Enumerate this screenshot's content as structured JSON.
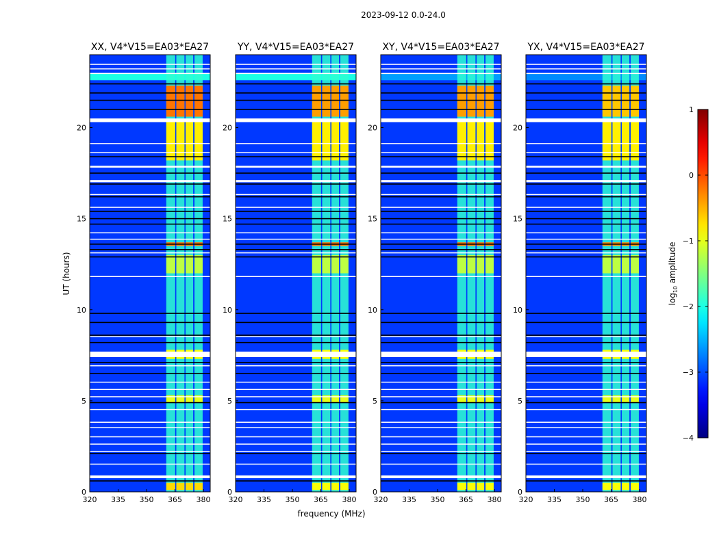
{
  "chart_data": {
    "type": "heatmap",
    "title": "2023-09-12 0.0-24.0",
    "xlabel": "frequency (MHz)",
    "ylabel": "UT (hours)",
    "xlim": [
      320,
      383.6
    ],
    "ylim": [
      0,
      24
    ],
    "xticks": [
      "320",
      "335",
      "350",
      "365",
      "380"
    ],
    "xtick_values": [
      320,
      335,
      350,
      365,
      380
    ],
    "yticks": [
      "0",
      "5",
      "10",
      "15",
      "20"
    ],
    "ytick_values": [
      0,
      5,
      10,
      15,
      20
    ],
    "colorbar": {
      "label_main": "log",
      "label_sub": "10",
      "label_rest": " amplitude",
      "range": [
        -4,
        1
      ],
      "ticks": [
        "1",
        "0",
        "−1",
        "−2",
        "−3",
        "−4"
      ],
      "tick_values": [
        1,
        0,
        -1,
        -2,
        -3,
        -4
      ],
      "colormap": "jet"
    },
    "background_level": -3.1,
    "bright_channels_mhz": [
      [
        360.4,
        365.1
      ],
      [
        365.7,
        370.0
      ],
      [
        370.6,
        374.6
      ],
      [
        375.3,
        379.6
      ]
    ],
    "panels": [
      {
        "title": "XX, V4*V15=EA03*EA27",
        "wideband_level": -2.0,
        "segments": [
          [
            0,
            24,
            -1.9
          ],
          [
            0.1,
            0.5,
            -0.7
          ],
          [
            4.9,
            5.3,
            -1.0
          ],
          [
            12.0,
            13.0,
            -1.2
          ],
          [
            13.5,
            13.7,
            -0.2
          ],
          [
            18.2,
            20.3,
            -0.8
          ],
          [
            20.6,
            22.3,
            -0.2
          ],
          [
            7.3,
            7.8,
            -0.9
          ]
        ]
      },
      {
        "title": "YY, V4*V15=EA03*EA27",
        "wideband_level": -2.0,
        "segments": [
          [
            0,
            24,
            -1.9
          ],
          [
            0.1,
            0.5,
            -0.9
          ],
          [
            4.9,
            5.3,
            -1.0
          ],
          [
            12.0,
            13.0,
            -1.2
          ],
          [
            13.5,
            13.7,
            -0.2
          ],
          [
            18.2,
            20.3,
            -0.8
          ],
          [
            20.6,
            22.3,
            -0.4
          ],
          [
            7.3,
            7.8,
            -0.9
          ]
        ]
      },
      {
        "title": "XY, V4*V15=EA03*EA27",
        "wideband_level": -2.6,
        "segments": [
          [
            0,
            24,
            -1.9
          ],
          [
            0.1,
            0.5,
            -0.9
          ],
          [
            4.9,
            5.3,
            -1.0
          ],
          [
            12.0,
            13.0,
            -1.2
          ],
          [
            13.5,
            13.7,
            -0.2
          ],
          [
            18.2,
            20.3,
            -0.8
          ],
          [
            20.6,
            22.3,
            -0.4
          ],
          [
            7.3,
            7.8,
            -0.9
          ]
        ]
      },
      {
        "title": "YX, V4*V15=EA03*EA27",
        "wideband_level": -2.7,
        "segments": [
          [
            0,
            24,
            -1.9
          ],
          [
            0.1,
            0.5,
            -0.9
          ],
          [
            4.9,
            5.3,
            -1.0
          ],
          [
            12.0,
            13.0,
            -1.2
          ],
          [
            13.5,
            13.7,
            -0.3
          ],
          [
            18.2,
            20.3,
            -0.8
          ],
          [
            20.6,
            22.3,
            -0.6
          ],
          [
            7.3,
            7.8,
            -0.9
          ]
        ]
      }
    ],
    "wideband_rfi_hours": [
      22.6,
      23.0
    ],
    "flagged_white_hours": [
      [
        23.45,
        23.5
      ],
      [
        23.2,
        23.25
      ],
      [
        22.95,
        23.0
      ],
      [
        20.3,
        20.5
      ],
      [
        19.1,
        19.15
      ],
      [
        18.6,
        18.65
      ],
      [
        17.8,
        17.9
      ],
      [
        17.0,
        17.12
      ],
      [
        16.3,
        16.35
      ],
      [
        15.6,
        15.65
      ],
      [
        14.2,
        14.25
      ],
      [
        13.85,
        13.9
      ],
      [
        13.1,
        13.15
      ],
      [
        11.8,
        11.85
      ],
      [
        8.5,
        8.55
      ],
      [
        7.4,
        7.7
      ],
      [
        6.9,
        6.95
      ],
      [
        6.0,
        6.05
      ],
      [
        5.6,
        5.65
      ],
      [
        5.2,
        5.25
      ],
      [
        4.5,
        4.55
      ],
      [
        3.8,
        3.85
      ],
      [
        3.5,
        3.55
      ],
      [
        3.0,
        3.05
      ],
      [
        2.6,
        2.65
      ],
      [
        2.2,
        2.25
      ],
      [
        1.5,
        1.55
      ],
      [
        0.75,
        0.9
      ]
    ],
    "flagged_black_hours": [
      22.4,
      21.9,
      21.5,
      21.0,
      18.4,
      17.5,
      16.9,
      16.2,
      15.4,
      15.0,
      14.7,
      13.6,
      13.3,
      12.9,
      9.8,
      9.3,
      8.6,
      8.2,
      7.1,
      6.5,
      4.9,
      2.1,
      0.6
    ]
  }
}
